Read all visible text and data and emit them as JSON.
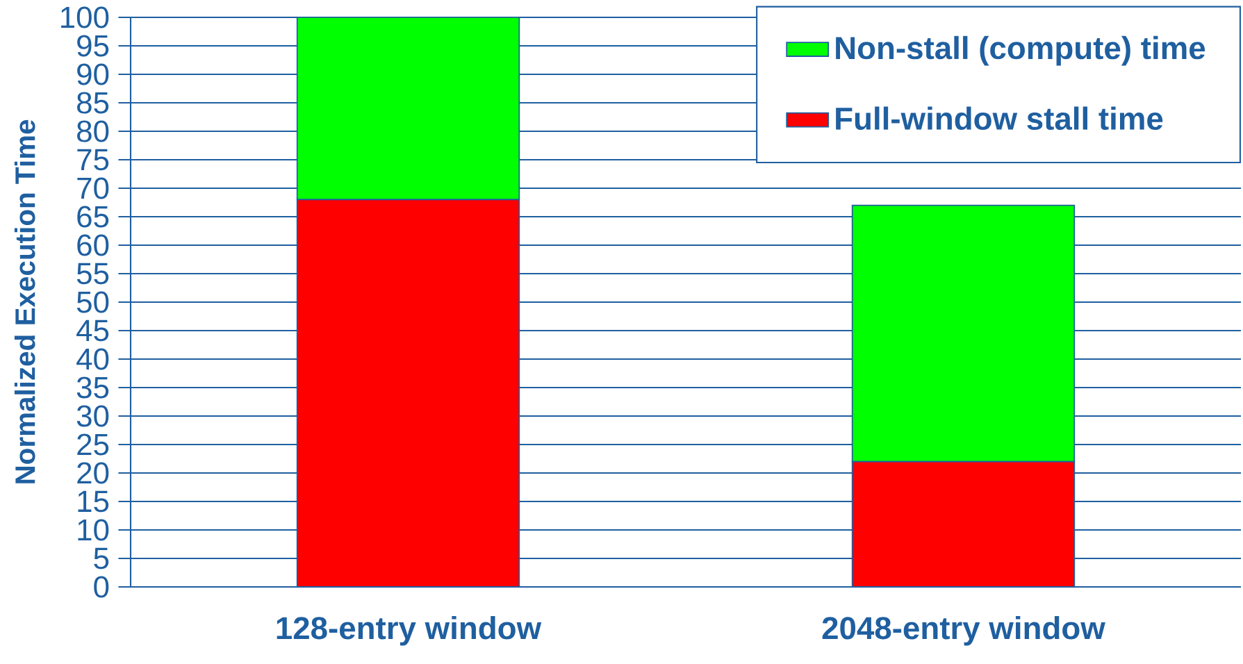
{
  "chart_data": {
    "type": "bar",
    "stacked": true,
    "ylabel": "Normalized Execution Time",
    "categories": [
      "128-entry window",
      "2048-entry window"
    ],
    "series": [
      {
        "name": "Full-window stall time",
        "color": "#ff0000",
        "values": [
          68,
          22
        ]
      },
      {
        "name": "Non-stall (compute) time",
        "color": "#00ff00",
        "values": [
          32,
          45
        ]
      }
    ],
    "ylim": [
      0,
      100
    ],
    "yticks": [
      0,
      5,
      10,
      15,
      20,
      25,
      30,
      35,
      40,
      45,
      50,
      55,
      60,
      65,
      70,
      75,
      80,
      85,
      90,
      95,
      100
    ],
    "grid": "y",
    "legend": "top right"
  }
}
